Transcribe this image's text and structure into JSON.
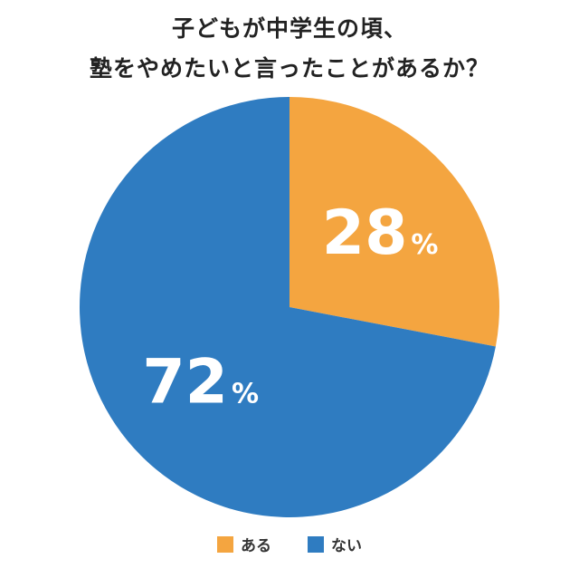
{
  "title_lines": [
    "子どもが中学生の頃、",
    "塾をやめたいと言ったことがあるか？"
  ],
  "chart_data": {
    "type": "pie",
    "title": "子どもが中学生の頃、塾をやめたいと言ったことがあるか？",
    "start_angle_deg": 0,
    "direction": "clockwise",
    "legend_position": "bottom",
    "slices": [
      {
        "label": "ある",
        "value": 28,
        "value_text": "28",
        "unit": "%",
        "color": "#F4A540"
      },
      {
        "label": "ない",
        "value": 72,
        "value_text": "72",
        "unit": "%",
        "color": "#2F7CC1"
      }
    ]
  }
}
